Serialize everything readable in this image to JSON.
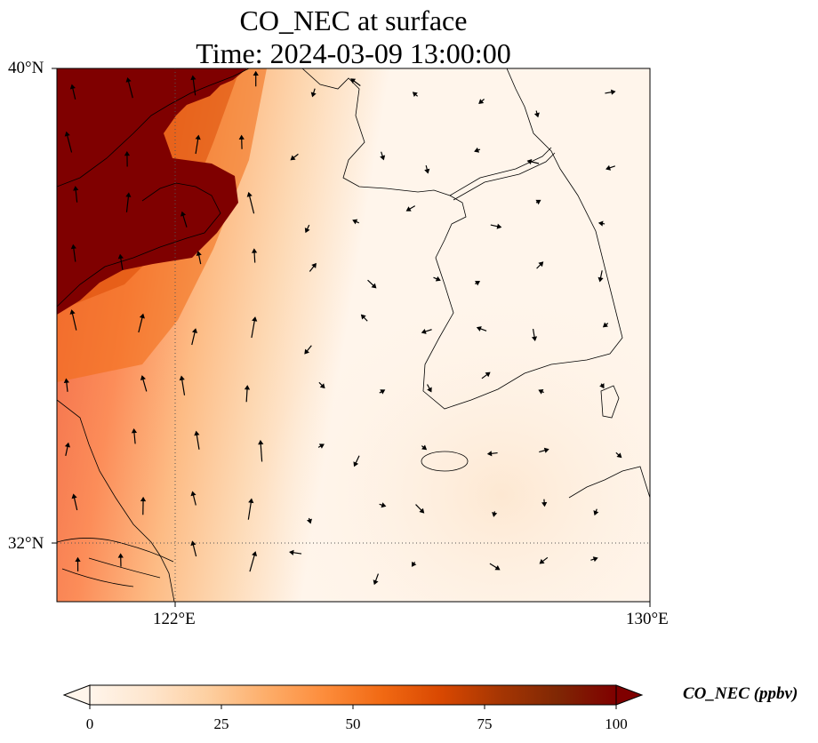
{
  "title": {
    "line1": "CO_NEC at surface",
    "line2": "Time: 2024-03-09 13:00:00"
  },
  "axes": {
    "lat_ticks": [
      "40°N",
      "32°N"
    ],
    "lon_ticks": [
      "122°E",
      "130°E"
    ],
    "lat_range": [
      31,
      40
    ],
    "lon_range": [
      120,
      130
    ]
  },
  "colorbar": {
    "label": "CO_NEC (ppbv)",
    "ticks": [
      "0",
      "25",
      "50",
      "75",
      "100"
    ],
    "range": [
      0,
      100
    ],
    "extend": "both",
    "colormap": [
      "#fff5eb",
      "#fee6ce",
      "#fdd0a2",
      "#fdae6b",
      "#fd8d3c",
      "#f16913",
      "#d94801",
      "#a63603",
      "#7f2704",
      "#7f0000"
    ]
  },
  "field": {
    "high_region": "north-west (China coast)",
    "high_color": "#7f0000",
    "plume_color": "#ef6548",
    "background_color": "#fff5eb"
  },
  "colors": {
    "coastline": "#000000",
    "gridline": "#555555"
  }
}
